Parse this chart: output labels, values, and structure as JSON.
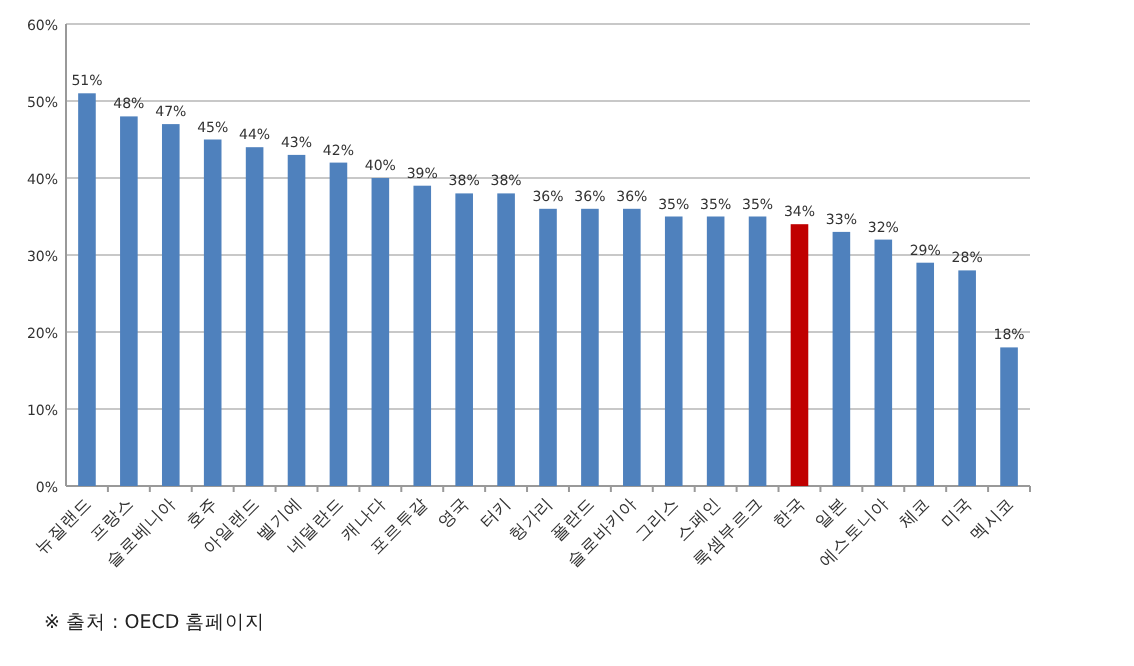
{
  "chart_data": {
    "type": "bar",
    "categories": [
      "뉴질랜드",
      "프랑스",
      "슬로베니아",
      "호주",
      "아일랜드",
      "벨기에",
      "네덜란드",
      "캐나다",
      "포르투갈",
      "영국",
      "터키",
      "헝가리",
      "폴란드",
      "슬로바키아",
      "그리스",
      "스페인",
      "룩셈부르크",
      "한국",
      "일본",
      "에스토니아",
      "체코",
      "미국",
      "멕시코"
    ],
    "values": [
      51,
      48,
      47,
      45,
      44,
      43,
      42,
      40,
      39,
      38,
      38,
      36,
      36,
      36,
      35,
      35,
      35,
      34,
      33,
      32,
      29,
      28,
      18
    ],
    "value_labels": [
      "51%",
      "48%",
      "47%",
      "45%",
      "44%",
      "43%",
      "42%",
      "40%",
      "39%",
      "38%",
      "38%",
      "36%",
      "36%",
      "36%",
      "35%",
      "35%",
      "35%",
      "34%",
      "33%",
      "32%",
      "29%",
      "28%",
      "18%"
    ],
    "colors": [
      "#4f81bd",
      "#4f81bd",
      "#4f81bd",
      "#4f81bd",
      "#4f81bd",
      "#4f81bd",
      "#4f81bd",
      "#4f81bd",
      "#4f81bd",
      "#4f81bd",
      "#4f81bd",
      "#4f81bd",
      "#4f81bd",
      "#4f81bd",
      "#4f81bd",
      "#4f81bd",
      "#4f81bd",
      "#c00000",
      "#4f81bd",
      "#4f81bd",
      "#4f81bd",
      "#4f81bd",
      "#4f81bd"
    ],
    "ylim": [
      0,
      60
    ],
    "yticks": [
      {
        "value": 0,
        "label": "0%"
      },
      {
        "value": 10,
        "label": "10%"
      },
      {
        "value": 20,
        "label": "20%"
      },
      {
        "value": 30,
        "label": "30%"
      },
      {
        "value": 40,
        "label": "40%"
      },
      {
        "value": 50,
        "label": "50%"
      },
      {
        "value": 60,
        "label": "60%"
      }
    ],
    "grid": "y",
    "annotations": [
      "※ 출처 : OECD 홈페이지"
    ]
  }
}
